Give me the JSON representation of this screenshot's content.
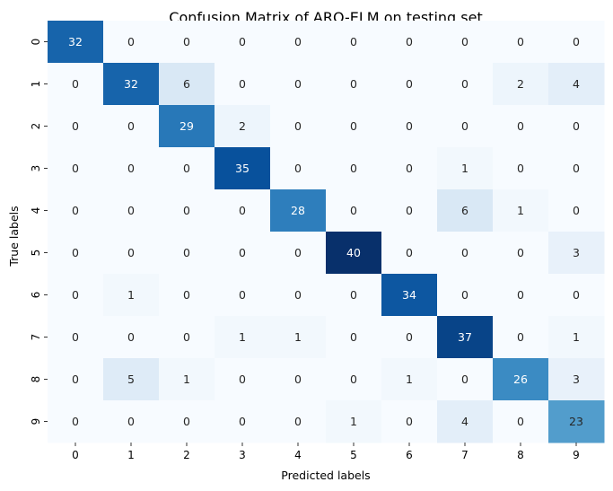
{
  "chart_data": {
    "type": "heatmap",
    "title": "Confusion Matrix of ARO-ELM on testing set",
    "xlabel": "Predicted labels",
    "ylabel": "True labels",
    "x_categories": [
      "0",
      "1",
      "2",
      "3",
      "4",
      "5",
      "6",
      "7",
      "8",
      "9"
    ],
    "y_categories": [
      "0",
      "1",
      "2",
      "3",
      "4",
      "5",
      "6",
      "7",
      "8",
      "9"
    ],
    "values": [
      [
        32,
        0,
        0,
        0,
        0,
        0,
        0,
        0,
        0,
        0
      ],
      [
        0,
        32,
        6,
        0,
        0,
        0,
        0,
        0,
        2,
        4
      ],
      [
        0,
        0,
        29,
        2,
        0,
        0,
        0,
        0,
        0,
        0
      ],
      [
        0,
        0,
        0,
        35,
        0,
        0,
        0,
        1,
        0,
        0
      ],
      [
        0,
        0,
        0,
        0,
        28,
        0,
        0,
        6,
        1,
        0
      ],
      [
        0,
        0,
        0,
        0,
        0,
        40,
        0,
        0,
        0,
        3
      ],
      [
        0,
        1,
        0,
        0,
        0,
        0,
        34,
        0,
        0,
        0
      ],
      [
        0,
        0,
        0,
        1,
        1,
        0,
        0,
        37,
        0,
        1
      ],
      [
        0,
        5,
        1,
        0,
        0,
        0,
        1,
        0,
        26,
        3
      ],
      [
        0,
        0,
        0,
        0,
        0,
        1,
        0,
        4,
        0,
        23
      ]
    ],
    "colormap": "Blues",
    "vmin": 0,
    "vmax": 40,
    "colorbar": false,
    "annotations": true
  }
}
